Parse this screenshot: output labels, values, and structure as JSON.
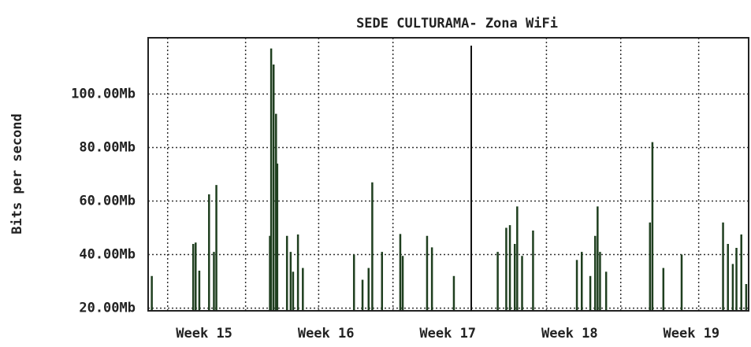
{
  "chart_data": {
    "type": "spike",
    "title": "SEDE CULTURAMA- Zona WiFi",
    "y_label": "Bits per second",
    "color": "#1f3f1f",
    "grid": true,
    "ylim": [
      19,
      121
    ],
    "yticks": [
      {
        "value": 20,
        "label": "20.00Mb"
      },
      {
        "value": 40,
        "label": "40.00Mb"
      },
      {
        "value": 60,
        "label": "60.00Mb"
      },
      {
        "value": 80,
        "label": "80.00Mb"
      },
      {
        "value": 100,
        "label": "100.00Mb"
      }
    ],
    "xlim": [
      14.54,
      19.47
    ],
    "xticks": [
      {
        "value": 15,
        "label": "Week 15"
      },
      {
        "value": 16,
        "label": "Week 16"
      },
      {
        "value": 17,
        "label": "Week 17"
      },
      {
        "value": 18,
        "label": "Week 18"
      },
      {
        "value": 19,
        "label": "Week 19"
      }
    ],
    "xgrid": [
      14.7,
      15.34,
      15.94,
      16.55,
      17.81,
      18.42,
      19.06
    ],
    "x": [
      14.57,
      14.91,
      14.93,
      14.96,
      15.04,
      15.08,
      15.1,
      15.54,
      15.55,
      15.57,
      15.59,
      15.6,
      15.68,
      15.71,
      15.73,
      15.77,
      15.81,
      16.23,
      16.3,
      16.35,
      16.38,
      16.46,
      16.61,
      16.63,
      16.83,
      16.87,
      17.05,
      17.41,
      17.48,
      17.51,
      17.55,
      17.57,
      17.61,
      17.7,
      18.06,
      18.1,
      18.17,
      18.21,
      18.23,
      18.25,
      18.3,
      18.66,
      18.68,
      18.77,
      18.92,
      19.26,
      19.3,
      19.34,
      19.37,
      19.41,
      19.45
    ],
    "values": [
      32,
      44,
      44.5,
      34,
      62.5,
      41,
      66,
      47,
      117,
      111,
      92.6,
      74,
      47,
      41,
      33.6,
      47.5,
      35,
      40,
      30.6,
      35,
      67,
      41,
      47.7,
      39.5,
      47,
      42.7,
      32,
      41,
      50,
      51,
      44,
      58,
      39.5,
      49,
      38,
      41,
      32,
      47,
      58,
      41,
      33.6,
      52,
      82,
      35,
      40,
      52,
      44,
      36.5,
      42.5,
      47.5,
      29
    ]
  }
}
